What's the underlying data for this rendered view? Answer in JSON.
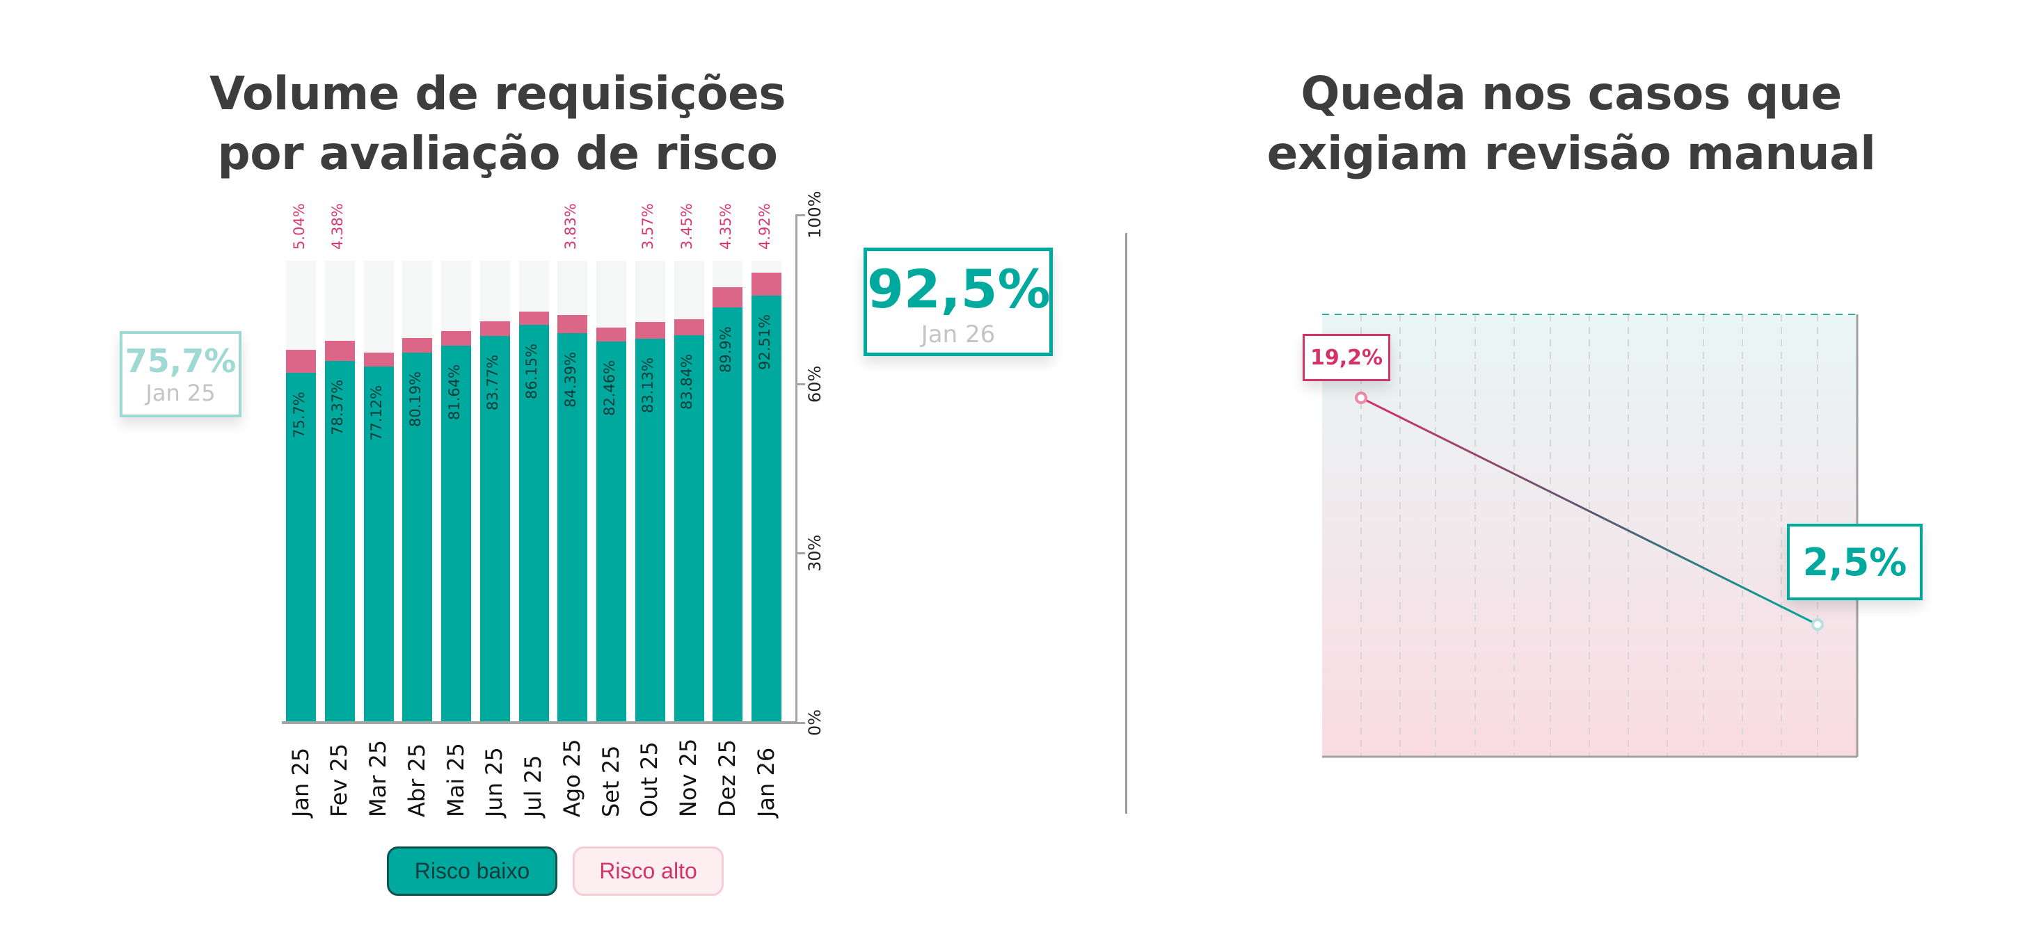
{
  "colors": {
    "low_risk": "#00a99d",
    "high_risk": "#dc6688",
    "high_risk_text": "#d63a6e",
    "background_bar": "#f4f7f6",
    "title": "#3d3d3d"
  },
  "chart_data": [
    {
      "type": "bar",
      "stacked": true,
      "title": "Volume de requisições por avaliação de risco",
      "title_lines": [
        "Volume de requisições",
        "por avaliação de risco"
      ],
      "categories": [
        "Jan 25",
        "Fev 25",
        "Mar 25",
        "Abr 25",
        "Mai 25",
        "Jun 25",
        "Jul 25",
        "Ago 25",
        "Set 25",
        "Out 25",
        "Nov 25",
        "Dez 25",
        "Jan 26"
      ],
      "series": [
        {
          "name": "Risco baixo",
          "color": "#00a99d",
          "values": [
            75.7,
            78.37,
            77.12,
            80.19,
            81.64,
            83.77,
            86.15,
            84.39,
            82.46,
            83.13,
            83.84,
            89.9,
            92.51
          ],
          "labels": [
            "75.7%",
            "78.37%",
            "77.12%",
            "80.19%",
            "81.64%",
            "83.77%",
            "86.15%",
            "84.39%",
            "82.46%",
            "83.13%",
            "83.84%",
            "89.9%",
            "92.51%"
          ]
        },
        {
          "name": "Risco alto",
          "color": "#dc6688",
          "values": [
            5.04,
            4.38,
            3.0,
            3.1,
            3.1,
            3.1,
            2.8,
            3.83,
            3.1,
            3.57,
            3.45,
            4.35,
            4.92
          ],
          "labels": [
            "5.04%",
            "4.38%",
            null,
            null,
            null,
            null,
            null,
            "3.83%",
            null,
            "3.57%",
            "3.45%",
            "4.35%",
            "4.92%"
          ]
        }
      ],
      "y_ticks": [
        "100%",
        "60%",
        "30%",
        "0%"
      ],
      "legend": {
        "position": "bottom",
        "items": [
          "Risco baixo",
          "Risco alto"
        ]
      },
      "callouts": [
        {
          "value": "75,7%",
          "period": "Jan 25"
        },
        {
          "value": "92,5%",
          "period": "Jan 26"
        }
      ]
    },
    {
      "type": "line",
      "title": "Queda nos casos que exigiam revisão manual",
      "title_lines": [
        "Queda nos casos que",
        "exigiam revisão manual"
      ],
      "points": [
        {
          "value": 19.2,
          "label": "19,2%",
          "color": "#d43369"
        },
        {
          "value": 2.5,
          "label": "2,5%",
          "color": "#00a99d"
        }
      ],
      "grid": {
        "vertical_dashed": 13
      },
      "background_gradient": [
        "#e8f6f5",
        "#fadbe3"
      ]
    }
  ]
}
